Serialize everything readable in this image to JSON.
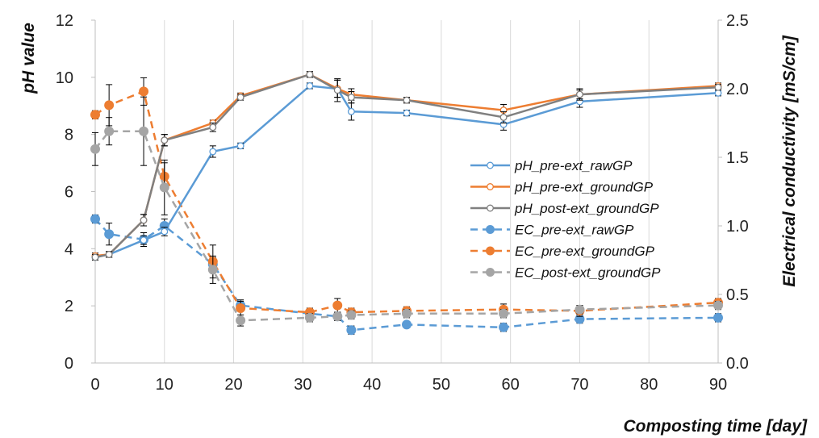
{
  "chart_data": {
    "type": "line",
    "xlabel": "Composting time [day]",
    "ylabel": "pH value",
    "y2label": "Electrical conductivity [mS/cm]",
    "xlim": [
      0,
      90
    ],
    "ylim": [
      0,
      12
    ],
    "y2lim": [
      0,
      2.5
    ],
    "x_ticks": [
      "0",
      "10",
      "20",
      "30",
      "40",
      "50",
      "60",
      "70",
      "80",
      "90"
    ],
    "y_ticks": [
      "0",
      "2",
      "4",
      "6",
      "8",
      "10",
      "12"
    ],
    "y2_ticks": [
      "0.0",
      "0.5",
      "1.0",
      "1.5",
      "2.0",
      "2.5"
    ],
    "grid": "vertical",
    "legend_position": "right",
    "series": [
      {
        "name": "pH_pre-ext_rawGP",
        "axis": "left",
        "color": "#5b9bd5",
        "style": "solid",
        "marker": "hollow",
        "x": [
          0,
          2,
          7,
          10,
          17,
          21,
          31,
          35,
          37,
          45,
          59,
          70,
          90
        ],
        "y": [
          3.7,
          3.8,
          4.3,
          4.6,
          7.4,
          7.6,
          9.7,
          9.6,
          8.8,
          8.75,
          8.35,
          9.15,
          9.45
        ],
        "err": [
          0.1,
          0.1,
          0.15,
          0.15,
          0.2,
          0.1,
          0.1,
          0.3,
          0.3,
          0.1,
          0.2,
          0.2,
          0.1
        ]
      },
      {
        "name": "pH_pre-ext_groundGP",
        "axis": "left",
        "color": "#ed7d31",
        "style": "solid",
        "marker": "hollow",
        "x": [
          0,
          2,
          7,
          10,
          17,
          21,
          31,
          35,
          37,
          45,
          59,
          70,
          90
        ],
        "y": [
          3.75,
          3.8,
          5.0,
          7.8,
          8.4,
          9.35,
          10.1,
          9.6,
          9.4,
          9.2,
          8.85,
          9.4,
          9.7
        ],
        "err": [
          0.1,
          0.1,
          0.2,
          0.2,
          0.1,
          0.1,
          0.1,
          0.3,
          0.2,
          0.1,
          0.2,
          0.15,
          0.1
        ]
      },
      {
        "name": "pH_post-ext_groundGP",
        "axis": "left",
        "color": "#808080",
        "style": "solid",
        "marker": "hollow",
        "x": [
          0,
          2,
          7,
          10,
          17,
          21,
          31,
          35,
          37,
          45,
          59,
          70,
          90
        ],
        "y": [
          3.7,
          3.8,
          5.0,
          7.8,
          8.25,
          9.3,
          10.1,
          9.55,
          9.3,
          9.2,
          8.6,
          9.4,
          9.65
        ],
        "err": [
          0.1,
          0.1,
          0.2,
          0.2,
          0.15,
          0.1,
          0.1,
          0.4,
          0.2,
          0.1,
          0.2,
          0.2,
          0.1
        ]
      },
      {
        "name": "EC_pre-ext_rawGP",
        "axis": "right",
        "color": "#5b9bd5",
        "style": "dashed",
        "marker": "filled",
        "x": [
          0,
          2,
          7,
          10,
          17,
          21,
          31,
          35,
          37,
          45,
          59,
          70,
          90
        ],
        "y": [
          1.05,
          0.94,
          0.9,
          1.0,
          0.72,
          0.42,
          0.36,
          0.34,
          0.24,
          0.28,
          0.26,
          0.32,
          0.33
        ],
        "err": [
          0.03,
          0.08,
          0.05,
          0.05,
          0.05,
          0.04,
          0.03,
          0.03,
          0.03,
          0.02,
          0.03,
          0.03,
          0.03
        ]
      },
      {
        "name": "EC_pre-ext_groundGP",
        "axis": "right",
        "color": "#ed7d31",
        "style": "dashed",
        "marker": "filled",
        "x": [
          0,
          2,
          7,
          10,
          17,
          21,
          31,
          35,
          37,
          45,
          59,
          70,
          90
        ],
        "y": [
          1.81,
          1.88,
          1.98,
          1.36,
          0.74,
          0.4,
          0.37,
          0.42,
          0.37,
          0.38,
          0.39,
          0.38,
          0.44
        ],
        "err": [
          0.03,
          0.15,
          0.1,
          0.1,
          0.12,
          0.05,
          0.03,
          0.05,
          0.03,
          0.03,
          0.04,
          0.04,
          0.03
        ]
      },
      {
        "name": "EC_post-ext_groundGP",
        "axis": "right",
        "color": "#a5a5a5",
        "style": "dashed",
        "marker": "filled",
        "x": [
          0,
          2,
          7,
          10,
          17,
          21,
          31,
          35,
          37,
          45,
          59,
          70,
          90
        ],
        "y": [
          1.56,
          1.69,
          1.69,
          1.28,
          0.68,
          0.31,
          0.33,
          0.34,
          0.35,
          0.36,
          0.36,
          0.39,
          0.42
        ],
        "err": [
          0.12,
          0.1,
          0.25,
          0.2,
          0.1,
          0.04,
          0.03,
          0.03,
          0.03,
          0.03,
          0.03,
          0.03,
          0.03
        ]
      }
    ]
  }
}
